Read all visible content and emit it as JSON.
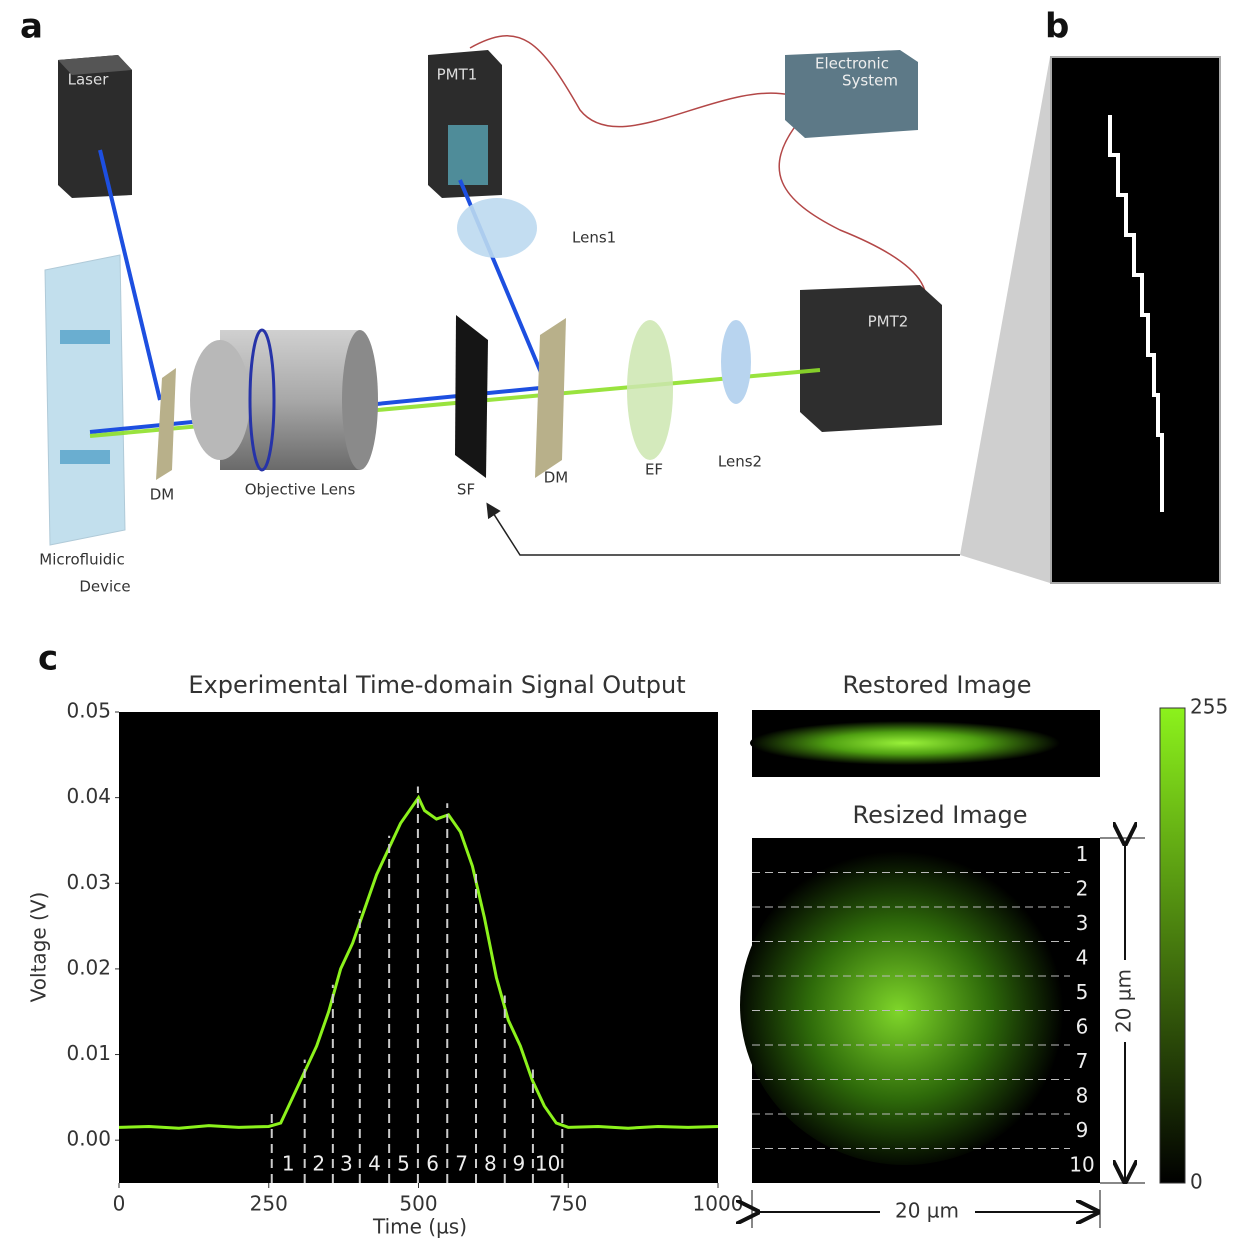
{
  "panel_labels": [
    "a",
    "b",
    "c"
  ],
  "diagram": {
    "laser": "Laser",
    "pmt1": "PMT1",
    "electronic_system": [
      "Electronic",
      "System"
    ],
    "lens1": "Lens1",
    "pmt2": "PMT2",
    "dm1": "DM",
    "objective": "Objective Lens",
    "sf": "SF",
    "dm2": "DM",
    "ef": "EF",
    "lens2": "Lens2",
    "device": [
      "Microfluidic",
      "Device"
    ]
  },
  "chart_data": {
    "type": "line",
    "title": "Experimental Time-domain Signal Output",
    "x_label": "Time (µs)",
    "y_label": "Voltage (V)",
    "xlim": [
      0,
      1000
    ],
    "ylim": [
      -0.005,
      0.05
    ],
    "xticks": [
      0,
      250,
      500,
      750,
      1000
    ],
    "yticks": [
      {
        "value": 0,
        "label": "0.00"
      },
      {
        "value": 0.01,
        "label": "0.01"
      },
      {
        "value": 0.02,
        "label": "0.02"
      },
      {
        "value": 0.03,
        "label": "0.03"
      },
      {
        "value": 0.04,
        "label": "0.04"
      },
      {
        "value": 0.05,
        "label": "0.05"
      }
    ],
    "series": [
      {
        "color": "#8cf21c",
        "x": [
          0,
          50,
          100,
          150,
          200,
          250,
          270,
          290,
          310,
          330,
          350,
          370,
          390,
          410,
          430,
          450,
          470,
          490,
          500,
          510,
          530,
          550,
          570,
          590,
          610,
          630,
          650,
          670,
          690,
          710,
          730,
          750,
          800,
          850,
          900,
          950,
          1000
        ],
        "values": [
          0.0015,
          0.0016,
          0.0014,
          0.0017,
          0.0015,
          0.0016,
          0.002,
          0.005,
          0.008,
          0.011,
          0.015,
          0.02,
          0.023,
          0.027,
          0.031,
          0.034,
          0.037,
          0.039,
          0.04,
          0.0385,
          0.0375,
          0.038,
          0.036,
          0.032,
          0.026,
          0.019,
          0.014,
          0.011,
          0.007,
          0.004,
          0.002,
          0.0015,
          0.0016,
          0.0014,
          0.0016,
          0.0015,
          0.0016
        ]
      }
    ],
    "segment_edges": [
      255,
      310,
      357,
      402,
      451,
      499,
      548,
      596,
      644,
      691,
      740
    ],
    "segment_labels": [
      "1",
      "2",
      "3",
      "4",
      "5",
      "6",
      "7",
      "8",
      "9",
      "10"
    ]
  },
  "restored_image": {
    "title": "Restored Image"
  },
  "resized_image": {
    "title": "Resized Image",
    "row_labels": [
      "1",
      "2",
      "3",
      "4",
      "5",
      "6",
      "7",
      "8",
      "9",
      "10"
    ],
    "height_label": "20 µm",
    "width_label": "20 µm"
  },
  "colorbar": {
    "ticks": [
      0,
      255
    ]
  }
}
